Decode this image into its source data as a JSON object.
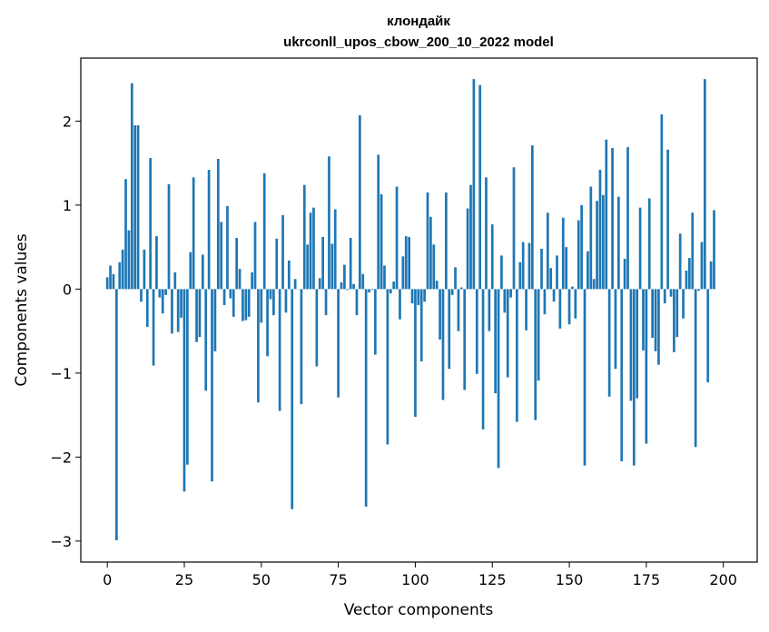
{
  "chart_data": {
    "type": "bar",
    "title": "клондайк",
    "subtitle": "ukrconll_upos_cbow_200_10_2022 model",
    "xlabel": "Vector components",
    "ylabel": "Components values",
    "xlim": [
      -8.6,
      211
    ],
    "ylim": [
      -3.25,
      2.75
    ],
    "xticks": [
      0,
      25,
      50,
      75,
      100,
      125,
      150,
      175,
      200
    ],
    "xtick_labels": [
      "0",
      "25",
      "50",
      "75",
      "100",
      "125",
      "150",
      "175",
      "200"
    ],
    "yticks": [
      -3,
      -2,
      -1,
      0,
      1,
      2
    ],
    "ytick_labels": [
      "−3",
      "−2",
      "−1",
      "0",
      "1",
      "2"
    ],
    "grid": false,
    "bar_color": "#1f77b4",
    "values": [
      0.14,
      0.28,
      0.18,
      -2.99,
      0.32,
      0.47,
      1.31,
      0.7,
      2.45,
      1.95,
      1.95,
      -0.15,
      0.47,
      -0.45,
      1.56,
      -0.91,
      0.63,
      -0.1,
      -0.29,
      -0.07,
      1.25,
      -0.53,
      0.2,
      -0.51,
      -0.34,
      -2.41,
      -2.09,
      0.44,
      1.33,
      -0.63,
      -0.57,
      0.41,
      -1.21,
      1.42,
      -2.29,
      -0.74,
      1.55,
      0.8,
      -0.19,
      0.99,
      -0.11,
      -0.33,
      0.61,
      0.24,
      -0.38,
      -0.37,
      -0.33,
      0.2,
      0.8,
      -1.35,
      -0.4,
      1.38,
      -0.8,
      -0.12,
      -0.31,
      0.6,
      -1.45,
      0.88,
      -0.28,
      0.34,
      -2.62,
      0.12,
      0.0,
      -1.37,
      1.24,
      0.53,
      0.91,
      0.97,
      -0.92,
      0.13,
      0.62,
      -0.31,
      1.58,
      0.54,
      0.95,
      -1.29,
      0.08,
      0.29,
      -0.01,
      0.61,
      0.06,
      -0.31,
      2.07,
      0.18,
      -2.59,
      -0.04,
      -0.01,
      -0.78,
      1.6,
      1.13,
      0.28,
      -1.85,
      -0.05,
      0.09,
      1.22,
      -0.36,
      0.39,
      0.63,
      0.62,
      -0.17,
      -1.52,
      -0.19,
      -0.86,
      -0.15,
      1.15,
      0.86,
      0.53,
      0.1,
      -0.6,
      -1.32,
      1.15,
      -0.95,
      -0.07,
      0.26,
      -0.5,
      0.02,
      -1.2,
      0.96,
      1.24,
      2.5,
      -1.01,
      2.43,
      -1.67,
      1.33,
      -0.5,
      0.77,
      -1.24,
      -2.13,
      0.4,
      -0.28,
      -1.05,
      -0.1,
      1.45,
      -1.58,
      0.32,
      0.56,
      -0.49,
      0.55,
      1.71,
      -1.56,
      -1.09,
      0.48,
      -0.3,
      0.91,
      0.25,
      -0.15,
      0.4,
      -0.47,
      0.85,
      0.5,
      -0.42,
      0.03,
      -0.35,
      0.82,
      1.0,
      -2.1,
      0.45,
      1.22,
      0.12,
      1.05,
      1.42,
      1.12,
      1.78,
      -1.28,
      1.68,
      -0.95,
      1.1,
      -2.05,
      0.36,
      1.69,
      -1.33,
      -2.1,
      -1.3,
      0.97,
      -0.73,
      -1.84,
      1.08,
      -0.58,
      -0.74,
      -0.9,
      2.08,
      -0.17,
      1.66,
      -0.09,
      -0.75,
      -0.57,
      0.66,
      -0.35,
      0.22,
      0.37,
      0.91,
      -1.88,
      -0.02,
      0.56,
      2.5,
      -1.11,
      0.33,
      0.94
    ]
  }
}
